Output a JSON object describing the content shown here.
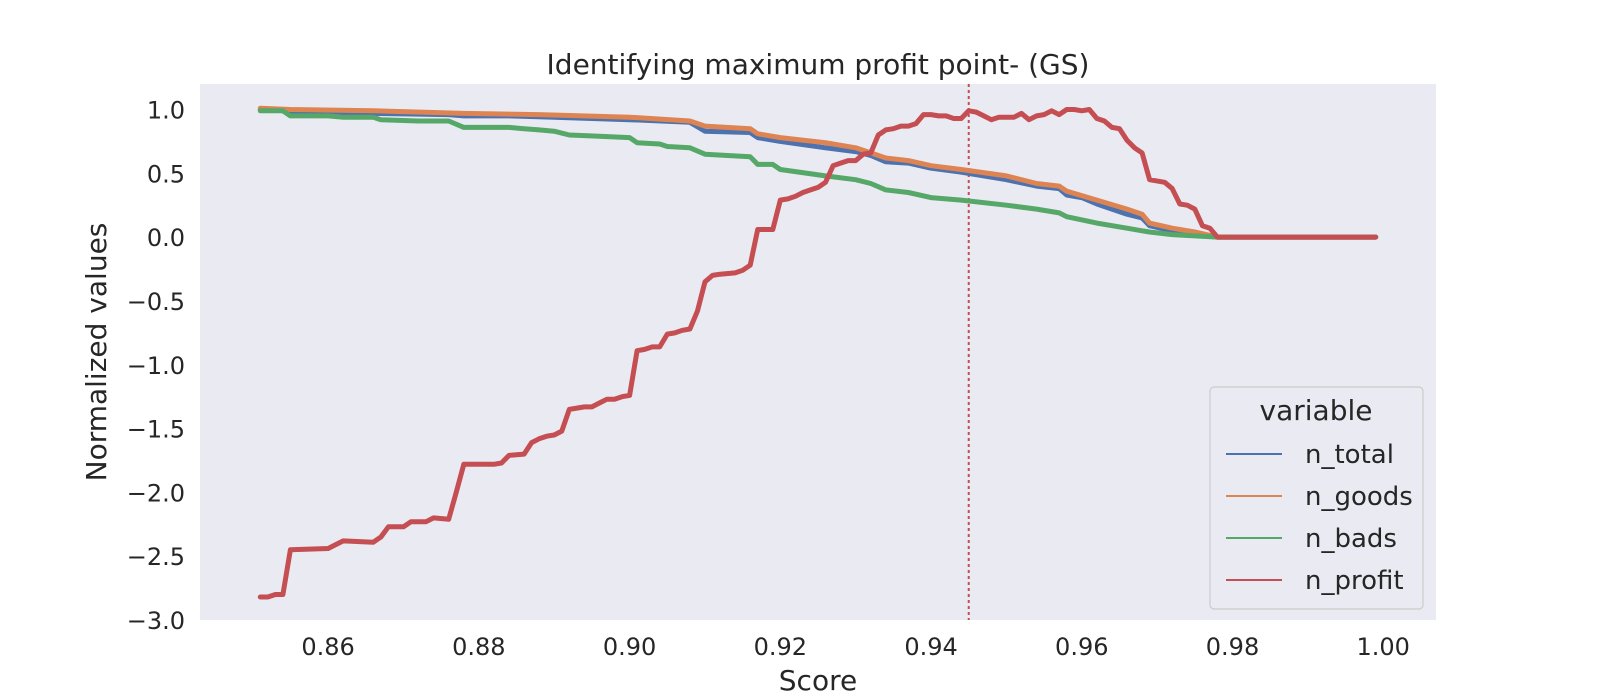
{
  "chart_data": {
    "type": "line",
    "title": "Identifying maximum profit point- (GS)",
    "xlabel": "Score",
    "ylabel": "Normalized values",
    "xlim": [
      0.843,
      1.007
    ],
    "ylim": [
      -3.0,
      1.2
    ],
    "xticks": [
      0.86,
      0.88,
      0.9,
      0.92,
      0.94,
      0.96,
      0.98,
      1.0
    ],
    "xtick_labels": [
      "0.86",
      "0.88",
      "0.90",
      "0.92",
      "0.94",
      "0.96",
      "0.98",
      "1.00"
    ],
    "yticks": [
      1.0,
      0.5,
      0.0,
      -0.5,
      -1.0,
      -1.5,
      -2.0,
      -2.5,
      -3.0
    ],
    "ytick_labels": [
      "1.0",
      "0.5",
      "0.0",
      "−0.5",
      "−1.0",
      "−1.5",
      "−2.0",
      "−2.5",
      "−3.0"
    ],
    "grid": false,
    "background": "#eaeaf2",
    "legend": {
      "title": "variable",
      "placement": "lower-right"
    },
    "vline": {
      "x": 0.945,
      "color": "#c44e52",
      "style": "dotted"
    },
    "series": [
      {
        "name": "n_total",
        "color": "#4c72b0",
        "points": [
          [
            0.851,
            1.0
          ],
          [
            0.853,
            1.0
          ],
          [
            0.855,
            0.98
          ],
          [
            0.86,
            0.98
          ],
          [
            0.866,
            0.97
          ],
          [
            0.876,
            0.96
          ],
          [
            0.878,
            0.95
          ],
          [
            0.884,
            0.95
          ],
          [
            0.89,
            0.94
          ],
          [
            0.9,
            0.92
          ],
          [
            0.908,
            0.9
          ],
          [
            0.91,
            0.83
          ],
          [
            0.916,
            0.82
          ],
          [
            0.917,
            0.78
          ],
          [
            0.92,
            0.75
          ],
          [
            0.926,
            0.7
          ],
          [
            0.93,
            0.67
          ],
          [
            0.932,
            0.64
          ],
          [
            0.934,
            0.59
          ],
          [
            0.937,
            0.58
          ],
          [
            0.94,
            0.54
          ],
          [
            0.944,
            0.51
          ],
          [
            0.95,
            0.45
          ],
          [
            0.954,
            0.4
          ],
          [
            0.957,
            0.38
          ],
          [
            0.958,
            0.33
          ],
          [
            0.96,
            0.31
          ],
          [
            0.962,
            0.26
          ],
          [
            0.966,
            0.18
          ],
          [
            0.968,
            0.15
          ],
          [
            0.969,
            0.09
          ],
          [
            0.972,
            0.05
          ],
          [
            0.975,
            0.02
          ],
          [
            0.978,
            0.0
          ],
          [
            0.999,
            0.0
          ]
        ]
      },
      {
        "name": "n_goods",
        "color": "#dd8452",
        "points": [
          [
            0.851,
            1.01
          ],
          [
            0.855,
            1.0
          ],
          [
            0.866,
            0.99
          ],
          [
            0.878,
            0.97
          ],
          [
            0.888,
            0.96
          ],
          [
            0.9,
            0.94
          ],
          [
            0.908,
            0.91
          ],
          [
            0.91,
            0.87
          ],
          [
            0.916,
            0.85
          ],
          [
            0.917,
            0.81
          ],
          [
            0.92,
            0.78
          ],
          [
            0.926,
            0.74
          ],
          [
            0.93,
            0.7
          ],
          [
            0.934,
            0.62
          ],
          [
            0.937,
            0.6
          ],
          [
            0.94,
            0.56
          ],
          [
            0.944,
            0.53
          ],
          [
            0.95,
            0.48
          ],
          [
            0.954,
            0.42
          ],
          [
            0.957,
            0.4
          ],
          [
            0.958,
            0.36
          ],
          [
            0.962,
            0.29
          ],
          [
            0.966,
            0.22
          ],
          [
            0.968,
            0.18
          ],
          [
            0.969,
            0.11
          ],
          [
            0.972,
            0.07
          ],
          [
            0.975,
            0.04
          ],
          [
            0.978,
            0.0
          ],
          [
            0.999,
            0.0
          ]
        ]
      },
      {
        "name": "n_bads",
        "color": "#55a868",
        "points": [
          [
            0.851,
            0.99
          ],
          [
            0.854,
            0.99
          ],
          [
            0.855,
            0.95
          ],
          [
            0.86,
            0.95
          ],
          [
            0.862,
            0.94
          ],
          [
            0.866,
            0.94
          ],
          [
            0.867,
            0.92
          ],
          [
            0.872,
            0.91
          ],
          [
            0.876,
            0.91
          ],
          [
            0.878,
            0.86
          ],
          [
            0.884,
            0.86
          ],
          [
            0.886,
            0.85
          ],
          [
            0.888,
            0.84
          ],
          [
            0.89,
            0.83
          ],
          [
            0.892,
            0.8
          ],
          [
            0.896,
            0.79
          ],
          [
            0.9,
            0.78
          ],
          [
            0.901,
            0.74
          ],
          [
            0.904,
            0.73
          ],
          [
            0.905,
            0.71
          ],
          [
            0.908,
            0.7
          ],
          [
            0.91,
            0.65
          ],
          [
            0.916,
            0.63
          ],
          [
            0.917,
            0.57
          ],
          [
            0.919,
            0.57
          ],
          [
            0.92,
            0.53
          ],
          [
            0.926,
            0.48
          ],
          [
            0.93,
            0.45
          ],
          [
            0.932,
            0.42
          ],
          [
            0.934,
            0.37
          ],
          [
            0.937,
            0.35
          ],
          [
            0.94,
            0.31
          ],
          [
            0.944,
            0.29
          ],
          [
            0.95,
            0.25
          ],
          [
            0.954,
            0.22
          ],
          [
            0.957,
            0.19
          ],
          [
            0.958,
            0.16
          ],
          [
            0.962,
            0.11
          ],
          [
            0.966,
            0.07
          ],
          [
            0.968,
            0.05
          ],
          [
            0.969,
            0.04
          ],
          [
            0.972,
            0.02
          ],
          [
            0.978,
            0.0
          ],
          [
            0.999,
            0.0
          ]
        ]
      },
      {
        "name": "n_profit",
        "color": "#c44e52",
        "points": [
          [
            0.851,
            -2.82
          ],
          [
            0.852,
            -2.82
          ],
          [
            0.853,
            -2.8
          ],
          [
            0.854,
            -2.8
          ],
          [
            0.855,
            -2.45
          ],
          [
            0.86,
            -2.44
          ],
          [
            0.862,
            -2.38
          ],
          [
            0.866,
            -2.39
          ],
          [
            0.867,
            -2.35
          ],
          [
            0.868,
            -2.27
          ],
          [
            0.87,
            -2.27
          ],
          [
            0.871,
            -2.23
          ],
          [
            0.873,
            -2.23
          ],
          [
            0.874,
            -2.2
          ],
          [
            0.876,
            -2.21
          ],
          [
            0.877,
            -2.0
          ],
          [
            0.878,
            -1.78
          ],
          [
            0.882,
            -1.78
          ],
          [
            0.883,
            -1.77
          ],
          [
            0.884,
            -1.71
          ],
          [
            0.886,
            -1.7
          ],
          [
            0.887,
            -1.61
          ],
          [
            0.888,
            -1.58
          ],
          [
            0.889,
            -1.56
          ],
          [
            0.89,
            -1.55
          ],
          [
            0.891,
            -1.52
          ],
          [
            0.892,
            -1.35
          ],
          [
            0.894,
            -1.33
          ],
          [
            0.895,
            -1.33
          ],
          [
            0.896,
            -1.3
          ],
          [
            0.897,
            -1.27
          ],
          [
            0.898,
            -1.27
          ],
          [
            0.899,
            -1.25
          ],
          [
            0.9,
            -1.24
          ],
          [
            0.901,
            -0.89
          ],
          [
            0.902,
            -0.88
          ],
          [
            0.903,
            -0.86
          ],
          [
            0.904,
            -0.86
          ],
          [
            0.905,
            -0.76
          ],
          [
            0.906,
            -0.75
          ],
          [
            0.907,
            -0.73
          ],
          [
            0.908,
            -0.72
          ],
          [
            0.909,
            -0.58
          ],
          [
            0.91,
            -0.35
          ],
          [
            0.911,
            -0.3
          ],
          [
            0.912,
            -0.29
          ],
          [
            0.914,
            -0.28
          ],
          [
            0.915,
            -0.26
          ],
          [
            0.916,
            -0.22
          ],
          [
            0.917,
            0.06
          ],
          [
            0.919,
            0.06
          ],
          [
            0.92,
            0.29
          ],
          [
            0.921,
            0.3
          ],
          [
            0.922,
            0.32
          ],
          [
            0.923,
            0.35
          ],
          [
            0.924,
            0.37
          ],
          [
            0.925,
            0.39
          ],
          [
            0.926,
            0.43
          ],
          [
            0.927,
            0.56
          ],
          [
            0.928,
            0.58
          ],
          [
            0.929,
            0.6
          ],
          [
            0.93,
            0.6
          ],
          [
            0.931,
            0.65
          ],
          [
            0.932,
            0.66
          ],
          [
            0.933,
            0.8
          ],
          [
            0.934,
            0.84
          ],
          [
            0.935,
            0.85
          ],
          [
            0.936,
            0.87
          ],
          [
            0.937,
            0.87
          ],
          [
            0.938,
            0.89
          ],
          [
            0.939,
            0.96
          ],
          [
            0.94,
            0.96
          ],
          [
            0.941,
            0.95
          ],
          [
            0.942,
            0.95
          ],
          [
            0.943,
            0.93
          ],
          [
            0.944,
            0.93
          ],
          [
            0.945,
            0.99
          ],
          [
            0.946,
            0.98
          ],
          [
            0.947,
            0.95
          ],
          [
            0.948,
            0.92
          ],
          [
            0.949,
            0.94
          ],
          [
            0.95,
            0.94
          ],
          [
            0.951,
            0.94
          ],
          [
            0.952,
            0.97
          ],
          [
            0.953,
            0.92
          ],
          [
            0.954,
            0.95
          ],
          [
            0.955,
            0.96
          ],
          [
            0.956,
            0.99
          ],
          [
            0.957,
            0.96
          ],
          [
            0.958,
            1.0
          ],
          [
            0.959,
            1.0
          ],
          [
            0.96,
            0.99
          ],
          [
            0.961,
            1.0
          ],
          [
            0.962,
            0.93
          ],
          [
            0.963,
            0.91
          ],
          [
            0.964,
            0.86
          ],
          [
            0.965,
            0.85
          ],
          [
            0.966,
            0.76
          ],
          [
            0.967,
            0.7
          ],
          [
            0.968,
            0.66
          ],
          [
            0.969,
            0.45
          ],
          [
            0.971,
            0.43
          ],
          [
            0.972,
            0.38
          ],
          [
            0.973,
            0.26
          ],
          [
            0.974,
            0.25
          ],
          [
            0.975,
            0.22
          ],
          [
            0.976,
            0.09
          ],
          [
            0.977,
            0.07
          ],
          [
            0.978,
            0.0
          ],
          [
            0.999,
            0.0
          ]
        ]
      }
    ]
  }
}
